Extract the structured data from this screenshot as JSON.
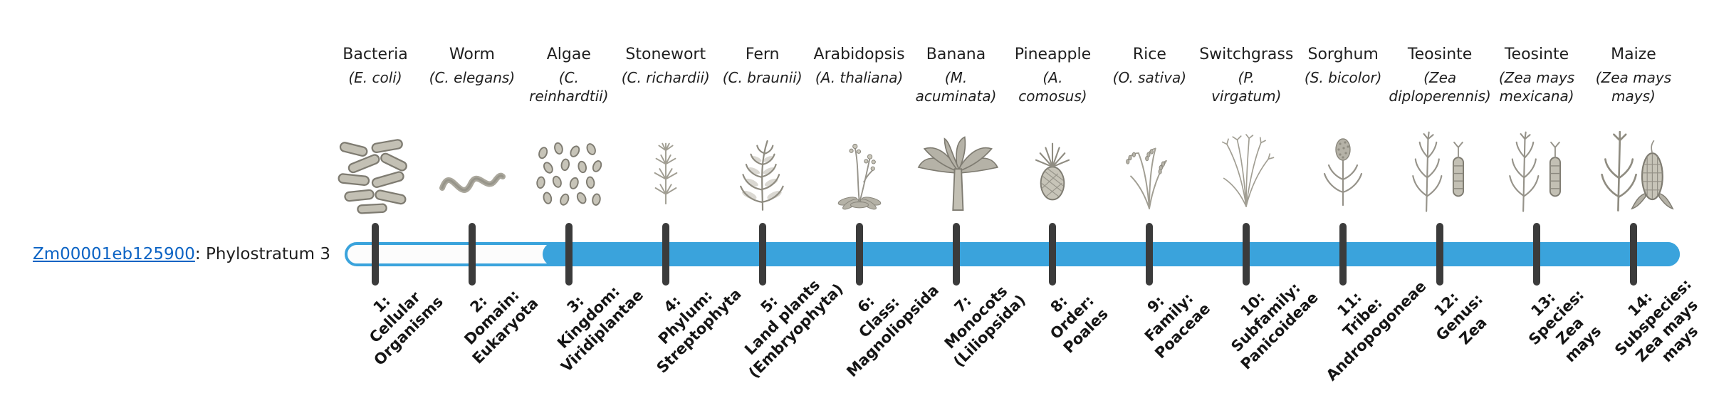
{
  "page": {
    "background": "#ffffff"
  },
  "gene": {
    "id": "Zm00001eb125900",
    "suffix": ": Phylostratum 3"
  },
  "bar": {
    "accent_color": "#3aa3dc",
    "tick_color": "#3b3b3b",
    "filled_from_stratum": 3,
    "total_strata": 14
  },
  "colors": {
    "link": "#0b63c4",
    "text": "#1f1f1f",
    "illustration": "#8b887e"
  },
  "chart_data": {
    "type": "table",
    "title": "Zm00001eb125900: Phylostratum 3",
    "x": [
      1,
      2,
      3,
      4,
      5,
      6,
      7,
      8,
      9,
      10,
      11,
      12,
      13,
      14
    ],
    "gene_phylostratum": 3,
    "bar_filled_range": [
      3,
      14
    ],
    "categories": [
      "1: Cellular Organisms",
      "2: Domain: Eukaryota",
      "3: Kingdom: Viridiplantae",
      "4: Phylum: Streptophyta",
      "5: Land plants (Embryophyta)",
      "6: Class: Magnoliopsida",
      "7: Monocots (Liliopsida)",
      "8: Order: Poales",
      "9: Family: Poaceae",
      "10: Subfamily: Panicoideae",
      "11: Tribe: Andropogoneae",
      "12: Genus: Zea",
      "13: Species: Zea mays",
      "14: Subspecies: Zea mays mays"
    ],
    "organisms": [
      "Bacteria (E. coli)",
      "Worm (C. elegans)",
      "Algae (C. reinhardtii)",
      "Stonewort (C. richardii)",
      "Fern (C. braunii)",
      "Arabidopsis (A. thaliana)",
      "Banana (M. acuminata)",
      "Pineapple (A. comosus)",
      "Rice (O. sativa)",
      "Switchgrass (P. virgatum)",
      "Sorghum (S. bicolor)",
      "Teosinte (Zea diploperennis)",
      "Teosinte (Zea mays mexicana)",
      "Maize (Zea mays mays)"
    ]
  },
  "strata": [
    {
      "num": 1,
      "organism": "Bacteria",
      "species": "(E. coli)",
      "icon": "bacteria",
      "label": "1:\nCellular\nOrganisms"
    },
    {
      "num": 2,
      "organism": "Worm",
      "species": "(C. elegans)",
      "icon": "worm",
      "label": "2:\nDomain:\nEukaryota"
    },
    {
      "num": 3,
      "organism": "Algae",
      "species": "(C.\nreinhardtii)",
      "icon": "algae",
      "label": "3:\nKingdom:\nViridiplantae"
    },
    {
      "num": 4,
      "organism": "Stonewort",
      "species": "(C. richardii)",
      "icon": "stonewort",
      "label": "4:\nPhylum:\nStreptophyta"
    },
    {
      "num": 5,
      "organism": "Fern",
      "species": "(C. braunii)",
      "icon": "fern",
      "label": "5:\nLand plants\n(Embryophyta)"
    },
    {
      "num": 6,
      "organism": "Arabidopsis",
      "species": "(A. thaliana)",
      "icon": "arabidopsis",
      "label": "6:\nClass:\nMagnoliopsida"
    },
    {
      "num": 7,
      "organism": "Banana",
      "species": "(M.\nacuminata)",
      "icon": "banana",
      "label": "7:\nMonocots\n(Liliopsida)"
    },
    {
      "num": 8,
      "organism": "Pineapple",
      "species": "(A.\ncomosus)",
      "icon": "pineapple",
      "label": "8:\nOrder:\nPoales"
    },
    {
      "num": 9,
      "organism": "Rice",
      "species": "(O. sativa)",
      "icon": "rice",
      "label": "9:\nFamily:\nPoaceae"
    },
    {
      "num": 10,
      "organism": "Switchgrass",
      "species": "(P.\nvirgatum)",
      "icon": "switchgrass",
      "label": "10:\nSubfamily:\nPanicoideae"
    },
    {
      "num": 11,
      "organism": "Sorghum",
      "species": "(S. bicolor)",
      "icon": "sorghum",
      "label": "11:\nTribe:\nAndropogoneae"
    },
    {
      "num": 12,
      "organism": "Teosinte",
      "species": "(Zea\ndiploperennis)",
      "icon": "teosinte",
      "label": "12:\nGenus:\nZea"
    },
    {
      "num": 13,
      "organism": "Teosinte",
      "species": "(Zea mays\nmexicana)",
      "icon": "teosinte",
      "label": "13:\nSpecies:\nZea\nmays"
    },
    {
      "num": 14,
      "organism": "Maize",
      "species": "(Zea mays\nmays)",
      "icon": "maize",
      "label": "14:\nSubspecies:\nZea mays\nmays"
    }
  ]
}
